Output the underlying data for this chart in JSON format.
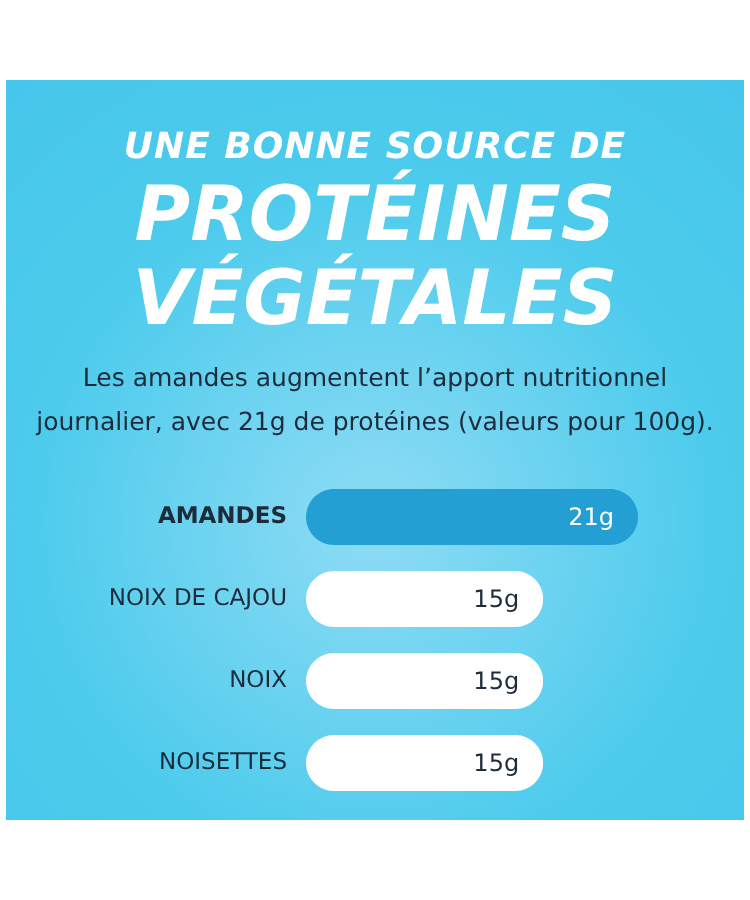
{
  "chart_data": {
    "type": "bar",
    "orientation": "horizontal",
    "subtitle": "UNE BONNE SOURCE DE",
    "title": "PROTÉINES VÉGÉTALES",
    "annotations": [
      "Les amandes augmentent l’apport nutritionnel journalier, avec 21g de protéines (valeurs pour 100g)."
    ],
    "categories": [
      "AMANDES",
      "NOIX DE CAJOU",
      "NOIX",
      "NOISETTES"
    ],
    "values": [
      21,
      15,
      15,
      15
    ],
    "value_labels": [
      "21g",
      "15g",
      "15g",
      "15g"
    ],
    "colors": [
      "#239fd4",
      "#ffffff",
      "#ffffff",
      "#ffffff"
    ]
  }
}
